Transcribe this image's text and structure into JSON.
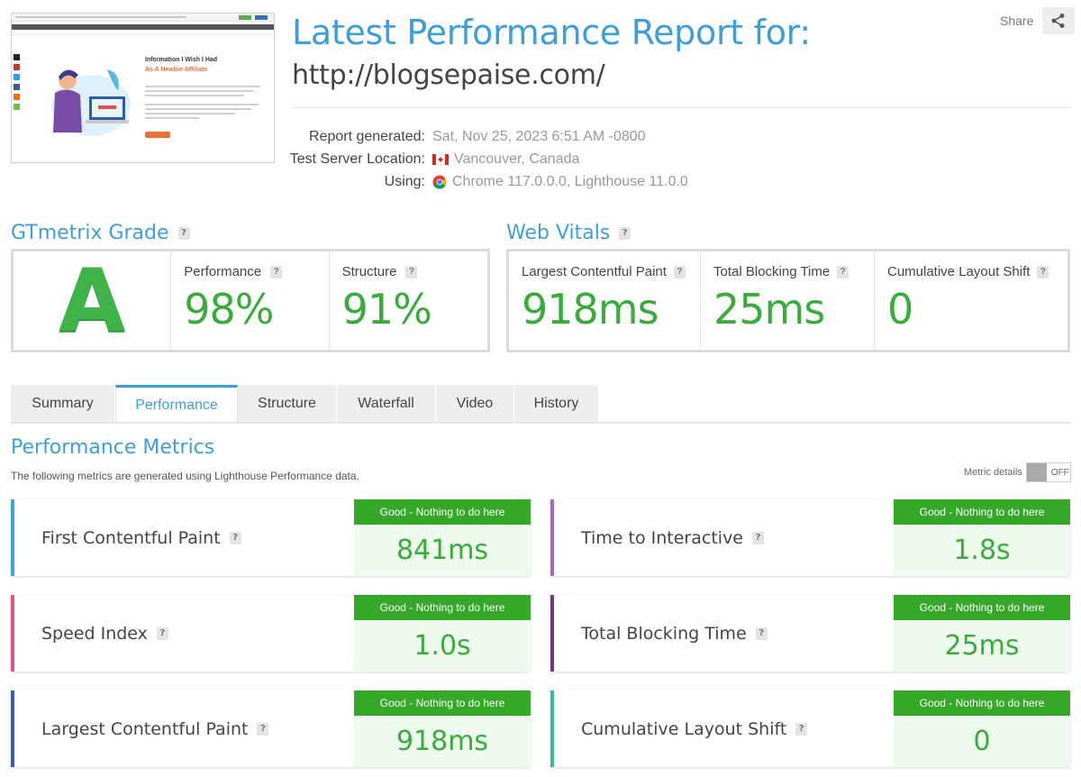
{
  "header": {
    "title": "Latest Performance Report for:",
    "url": "http://blogsepaise.com/",
    "share_label": "Share"
  },
  "thumbnail": {
    "heading": "Information I Wish I Had",
    "subheading": "As A Newbie Affiliate"
  },
  "meta": [
    {
      "key": "Report generated:",
      "value": "Sat, Nov 25, 2023 6:51 AM -0800",
      "icon": ""
    },
    {
      "key": "Test Server Location:",
      "value": "Vancouver, Canada",
      "icon": "canada-flag-icon"
    },
    {
      "key": "Using:",
      "value": "Chrome 117.0.0.0, Lighthouse 11.0.0",
      "icon": "chrome-icon"
    }
  ],
  "grade": {
    "title": "GTmetrix Grade",
    "letter": "A",
    "performance_label": "Performance",
    "performance_value": "98%",
    "structure_label": "Structure",
    "structure_value": "91%"
  },
  "vitals": {
    "title": "Web Vitals",
    "items": [
      {
        "label": "Largest Contentful Paint",
        "value": "918ms"
      },
      {
        "label": "Total Blocking Time",
        "value": "25ms"
      },
      {
        "label": "Cumulative Layout Shift",
        "value": "0"
      }
    ]
  },
  "tabs": [
    "Summary",
    "Performance",
    "Structure",
    "Waterfall",
    "Video",
    "History"
  ],
  "active_tab": "Performance",
  "metrics_section": {
    "title": "Performance Metrics",
    "description": "The following metrics are generated using Lighthouse Performance data.",
    "details_label": "Metric details",
    "toggle_state": "OFF"
  },
  "metrics": [
    {
      "name": "First Contentful Paint",
      "status": "Good - Nothing to do here",
      "value": "841ms",
      "accent": "#3aa8d8"
    },
    {
      "name": "Time to Interactive",
      "status": "Good - Nothing to do here",
      "value": "1.8s",
      "accent": "#a36bc0"
    },
    {
      "name": "Speed Index",
      "status": "Good - Nothing to do here",
      "value": "1.0s",
      "accent": "#d9578d"
    },
    {
      "name": "Total Blocking Time",
      "status": "Good - Nothing to do here",
      "value": "25ms",
      "accent": "#6b3b7a"
    },
    {
      "name": "Largest Contentful Paint",
      "status": "Good - Nothing to do here",
      "value": "918ms",
      "accent": "#3b5fb0"
    },
    {
      "name": "Cumulative Layout Shift",
      "status": "Good - Nothing to do here",
      "value": "0",
      "accent": "#3db89a"
    }
  ],
  "colors": {
    "brand_blue": "#3d9fd8",
    "grade_green": "#3fb24a",
    "badge_green": "#35a82a"
  }
}
